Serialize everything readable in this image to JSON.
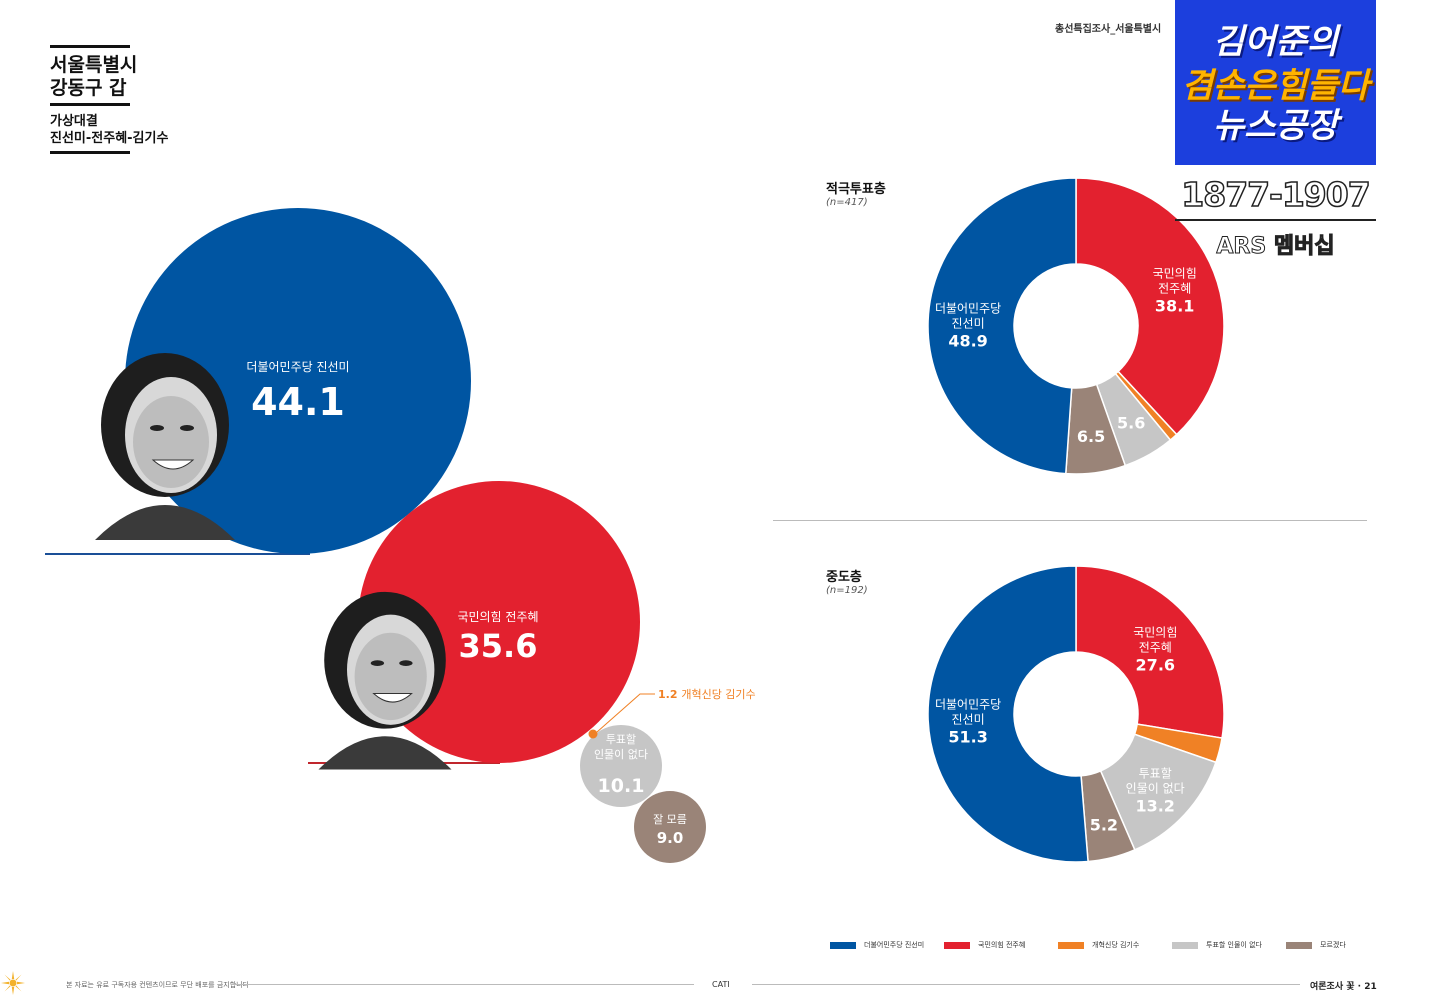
{
  "header": {
    "title": "서울특별시\n강동구 갑",
    "subtitle": "가상대결\n진선미-전주혜-김기수",
    "series_label": "총선특집조사_서울특별시"
  },
  "overlay": {
    "logo_line1": "김어준의",
    "logo_line2": "겸손은힘들다",
    "logo_line3": "뉴스공장",
    "phone": "1877-1907",
    "ars": "ARS 멤버십"
  },
  "colors": {
    "blue": "#0055a2",
    "red": "#e3212f",
    "orange": "#f08125",
    "gray": "#c6c6c6",
    "brown": "#9a8478"
  },
  "chart_data": [
    {
      "type": "bubble",
      "title": "",
      "items": [
        {
          "label": "더불어민주당 진선미",
          "value": 44.1,
          "color": "#0055a2"
        },
        {
          "label": "국민의힘 전주혜",
          "value": 35.6,
          "color": "#e3212f"
        },
        {
          "label": "개혁신당 김기수",
          "value": 1.2,
          "color": "#f08125"
        },
        {
          "label": "투표할\n인물이 없다",
          "value": 10.1,
          "color": "#c6c6c6"
        },
        {
          "label": "잘 모름",
          "value": 9.0,
          "color": "#9a8478"
        }
      ]
    },
    {
      "type": "pie",
      "title": "적극투표층",
      "n": "(n=417)",
      "slices": [
        {
          "label": "국민의힘\n전주혜",
          "value": 38.1,
          "color": "#e3212f"
        },
        {
          "label": "개혁신당 김기수",
          "value": 0.9,
          "color": "#f08125",
          "show_value": false
        },
        {
          "label": "투표할 인물이 없다",
          "value": 5.6,
          "color": "#c6c6c6"
        },
        {
          "label": "잘 모름",
          "value": 6.5,
          "color": "#9a8478"
        },
        {
          "label": "더불어민주당\n진선미",
          "value": 48.9,
          "color": "#0055a2"
        }
      ]
    },
    {
      "type": "pie",
      "title": "중도층",
      "n": "(n=192)",
      "slices": [
        {
          "label": "국민의힘\n전주혜",
          "value": 27.6,
          "color": "#e3212f"
        },
        {
          "label": "개혁신당 김기수",
          "value": 2.7,
          "color": "#f08125",
          "show_value": false
        },
        {
          "label": "투표할\n인물이 없다",
          "value": 13.2,
          "color": "#c6c6c6"
        },
        {
          "label": "잘 모름",
          "value": 5.2,
          "color": "#9a8478"
        },
        {
          "label": "더불어민주당\n진선미",
          "value": 51.3,
          "color": "#0055a2"
        }
      ]
    }
  ],
  "legend": [
    {
      "label": "더불어민주당 진선미",
      "color": "#0055a2"
    },
    {
      "label": "국민의힘 전주혜",
      "color": "#e3212f"
    },
    {
      "label": "개혁신당 김기수",
      "color": "#f08125"
    },
    {
      "label": "투표할 인물이 없다",
      "color": "#c6c6c6"
    },
    {
      "label": "모르겠다",
      "color": "#9a8478"
    }
  ],
  "footer": {
    "note": "본 자료는 유료 구독자용 컨텐츠이므로 무단 배포를 금지합니다",
    "method": "CATI",
    "page": "여론조사 꽃 · 21"
  }
}
